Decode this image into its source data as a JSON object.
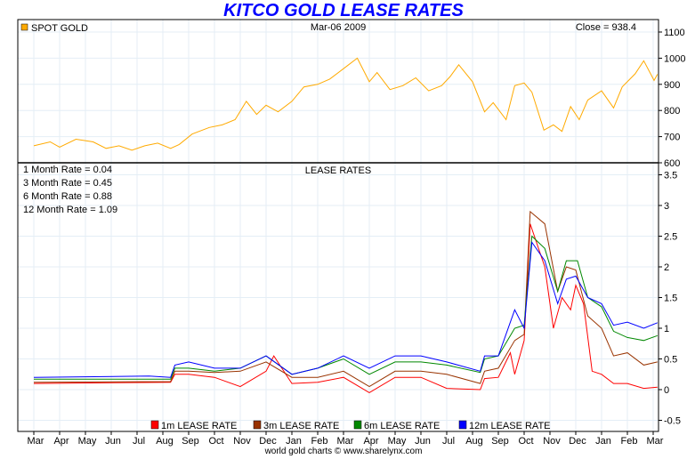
{
  "chart_data": [
    {
      "type": "line",
      "title": "KITCO GOLD LEASE RATES",
      "panel": "SPOT GOLD",
      "legend": [
        "SPOT GOLD"
      ],
      "date": "Mar-06  2009",
      "close_label": "Close = 938.4",
      "ylim": [
        600,
        1100
      ],
      "yticks": [
        600,
        700,
        800,
        900,
        1000,
        1100
      ],
      "color": "#ffaa00",
      "series": [
        {
          "name": "SPOT GOLD",
          "points": [
            [
              "2007-03-01",
              665
            ],
            [
              "2007-03-20",
              680
            ],
            [
              "2007-04-01",
              660
            ],
            [
              "2007-04-20",
              690
            ],
            [
              "2007-05-10",
              680
            ],
            [
              "2007-05-25",
              655
            ],
            [
              "2007-06-10",
              665
            ],
            [
              "2007-06-25",
              648
            ],
            [
              "2007-07-10",
              665
            ],
            [
              "2007-07-25",
              675
            ],
            [
              "2007-08-10",
              655
            ],
            [
              "2007-08-20",
              670
            ],
            [
              "2007-09-05",
              710
            ],
            [
              "2007-09-25",
              735
            ],
            [
              "2007-10-10",
              745
            ],
            [
              "2007-10-25",
              765
            ],
            [
              "2007-11-08",
              835
            ],
            [
              "2007-11-20",
              785
            ],
            [
              "2007-12-01",
              820
            ],
            [
              "2007-12-15",
              795
            ],
            [
              "2008-01-01",
              835
            ],
            [
              "2008-01-15",
              890
            ],
            [
              "2008-02-01",
              900
            ],
            [
              "2008-02-15",
              920
            ],
            [
              "2008-03-01",
              960
            ],
            [
              "2008-03-17",
              1000
            ],
            [
              "2008-04-01",
              910
            ],
            [
              "2008-04-10",
              945
            ],
            [
              "2008-04-25",
              880
            ],
            [
              "2008-05-10",
              895
            ],
            [
              "2008-05-25",
              925
            ],
            [
              "2008-06-10",
              875
            ],
            [
              "2008-06-25",
              895
            ],
            [
              "2008-07-05",
              930
            ],
            [
              "2008-07-15",
              975
            ],
            [
              "2008-08-01",
              910
            ],
            [
              "2008-08-15",
              795
            ],
            [
              "2008-08-25",
              830
            ],
            [
              "2008-09-10",
              765
            ],
            [
              "2008-09-20",
              895
            ],
            [
              "2008-10-01",
              905
            ],
            [
              "2008-10-10",
              870
            ],
            [
              "2008-10-24",
              725
            ],
            [
              "2008-11-05",
              745
            ],
            [
              "2008-11-15",
              720
            ],
            [
              "2008-11-25",
              815
            ],
            [
              "2008-12-05",
              765
            ],
            [
              "2008-12-15",
              840
            ],
            [
              "2009-01-01",
              875
            ],
            [
              "2009-01-15",
              810
            ],
            [
              "2009-01-25",
              890
            ],
            [
              "2009-02-10",
              940
            ],
            [
              "2009-02-20",
              990
            ],
            [
              "2009-03-02",
              915
            ],
            [
              "2009-03-06",
              938.4
            ]
          ]
        }
      ]
    },
    {
      "type": "line",
      "title": "LEASE RATES",
      "ylim": [
        -0.6,
        3.6
      ],
      "yticks": [
        -0.5,
        0,
        0.5,
        1,
        1.5,
        2,
        2.5,
        3,
        3.5
      ],
      "xticks": [
        "Mar",
        "Apr",
        "May",
        "Jun",
        "Jul",
        "Aug",
        "Sep",
        "Oct",
        "Nov",
        "Dec",
        "Jan",
        "Feb",
        "Mar",
        "Apr",
        "May",
        "Jun",
        "Jul",
        "Aug",
        "Sep",
        "Oct",
        "Nov",
        "Dec",
        "Jan",
        "Feb",
        "Mar"
      ],
      "readouts": [
        "1 Month Rate = 0.04",
        "3 Month Rate = 0.45",
        "6 Month Rate = 0.88",
        "12 Month Rate = 1.09"
      ],
      "series": [
        {
          "name": "1m LEASE RATE",
          "color": "#ff0000",
          "points": [
            [
              "2007-03-01",
              0.1
            ],
            [
              "2007-08-10",
              0.12
            ],
            [
              "2007-08-15",
              0.25
            ],
            [
              "2007-09-01",
              0.25
            ],
            [
              "2007-10-01",
              0.2
            ],
            [
              "2007-11-01",
              0.05
            ],
            [
              "2007-12-01",
              0.3
            ],
            [
              "2007-12-10",
              0.55
            ],
            [
              "2008-01-01",
              0.1
            ],
            [
              "2008-02-01",
              0.12
            ],
            [
              "2008-03-01",
              0.2
            ],
            [
              "2008-04-01",
              -0.05
            ],
            [
              "2008-05-01",
              0.2
            ],
            [
              "2008-06-01",
              0.2
            ],
            [
              "2008-07-01",
              0.02
            ],
            [
              "2008-08-10",
              0.0
            ],
            [
              "2008-08-15",
              0.18
            ],
            [
              "2008-09-01",
              0.2
            ],
            [
              "2008-09-15",
              0.6
            ],
            [
              "2008-09-20",
              0.25
            ],
            [
              "2008-10-01",
              0.8
            ],
            [
              "2008-10-08",
              2.7
            ],
            [
              "2008-10-25",
              2.0
            ],
            [
              "2008-11-05",
              1.0
            ],
            [
              "2008-11-15",
              1.5
            ],
            [
              "2008-11-25",
              1.3
            ],
            [
              "2008-12-01",
              1.7
            ],
            [
              "2008-12-10",
              1.4
            ],
            [
              "2008-12-20",
              0.3
            ],
            [
              "2009-01-01",
              0.25
            ],
            [
              "2009-01-15",
              0.1
            ],
            [
              "2009-02-01",
              0.1
            ],
            [
              "2009-02-20",
              0.02
            ],
            [
              "2009-03-06",
              0.04
            ]
          ]
        },
        {
          "name": "3m LEASE RATE",
          "color": "#993300",
          "points": [
            [
              "2007-03-01",
              0.12
            ],
            [
              "2007-08-10",
              0.13
            ],
            [
              "2007-08-15",
              0.3
            ],
            [
              "2007-09-01",
              0.3
            ],
            [
              "2007-10-01",
              0.28
            ],
            [
              "2007-11-01",
              0.3
            ],
            [
              "2007-12-01",
              0.45
            ],
            [
              "2008-01-01",
              0.2
            ],
            [
              "2008-02-01",
              0.2
            ],
            [
              "2008-03-01",
              0.3
            ],
            [
              "2008-04-01",
              0.05
            ],
            [
              "2008-05-01",
              0.3
            ],
            [
              "2008-06-01",
              0.3
            ],
            [
              "2008-07-01",
              0.25
            ],
            [
              "2008-08-10",
              0.1
            ],
            [
              "2008-08-15",
              0.3
            ],
            [
              "2008-09-01",
              0.35
            ],
            [
              "2008-09-20",
              0.8
            ],
            [
              "2008-10-01",
              0.9
            ],
            [
              "2008-10-08",
              2.9
            ],
            [
              "2008-10-25",
              2.7
            ],
            [
              "2008-11-10",
              1.6
            ],
            [
              "2008-11-20",
              2.0
            ],
            [
              "2008-12-01",
              1.95
            ],
            [
              "2008-12-15",
              1.2
            ],
            [
              "2009-01-01",
              1.0
            ],
            [
              "2009-01-15",
              0.55
            ],
            [
              "2009-02-01",
              0.6
            ],
            [
              "2009-02-20",
              0.4
            ],
            [
              "2009-03-06",
              0.45
            ]
          ]
        },
        {
          "name": "6m LEASE RATE",
          "color": "#008800",
          "points": [
            [
              "2007-03-01",
              0.17
            ],
            [
              "2007-08-10",
              0.17
            ],
            [
              "2007-08-15",
              0.35
            ],
            [
              "2007-09-01",
              0.35
            ],
            [
              "2007-10-01",
              0.3
            ],
            [
              "2007-11-01",
              0.35
            ],
            [
              "2007-12-01",
              0.55
            ],
            [
              "2008-01-01",
              0.25
            ],
            [
              "2008-02-01",
              0.35
            ],
            [
              "2008-03-01",
              0.5
            ],
            [
              "2008-04-01",
              0.25
            ],
            [
              "2008-05-01",
              0.45
            ],
            [
              "2008-06-01",
              0.45
            ],
            [
              "2008-07-01",
              0.4
            ],
            [
              "2008-08-10",
              0.28
            ],
            [
              "2008-08-15",
              0.5
            ],
            [
              "2008-09-01",
              0.55
            ],
            [
              "2008-09-20",
              1.0
            ],
            [
              "2008-10-01",
              1.05
            ],
            [
              "2008-10-10",
              2.5
            ],
            [
              "2008-10-25",
              2.3
            ],
            [
              "2008-11-10",
              1.6
            ],
            [
              "2008-11-20",
              2.1
            ],
            [
              "2008-12-03",
              2.1
            ],
            [
              "2008-12-15",
              1.5
            ],
            [
              "2009-01-01",
              1.35
            ],
            [
              "2009-01-15",
              0.95
            ],
            [
              "2009-02-01",
              0.85
            ],
            [
              "2009-02-20",
              0.8
            ],
            [
              "2009-03-06",
              0.88
            ]
          ]
        },
        {
          "name": "12m LEASE RATE",
          "color": "#0000ff",
          "points": [
            [
              "2007-03-01",
              0.2
            ],
            [
              "2007-07-15",
              0.22
            ],
            [
              "2007-08-10",
              0.2
            ],
            [
              "2007-08-15",
              0.4
            ],
            [
              "2007-09-01",
              0.45
            ],
            [
              "2007-10-01",
              0.35
            ],
            [
              "2007-11-01",
              0.35
            ],
            [
              "2007-12-01",
              0.55
            ],
            [
              "2008-01-01",
              0.25
            ],
            [
              "2008-02-01",
              0.35
            ],
            [
              "2008-03-01",
              0.55
            ],
            [
              "2008-04-01",
              0.35
            ],
            [
              "2008-05-01",
              0.55
            ],
            [
              "2008-06-01",
              0.55
            ],
            [
              "2008-07-01",
              0.45
            ],
            [
              "2008-08-10",
              0.3
            ],
            [
              "2008-08-15",
              0.55
            ],
            [
              "2008-09-01",
              0.55
            ],
            [
              "2008-09-20",
              1.3
            ],
            [
              "2008-10-01",
              1.0
            ],
            [
              "2008-10-10",
              2.4
            ],
            [
              "2008-10-25",
              2.1
            ],
            [
              "2008-11-10",
              1.4
            ],
            [
              "2008-11-20",
              1.8
            ],
            [
              "2008-12-01",
              1.85
            ],
            [
              "2008-12-15",
              1.5
            ],
            [
              "2009-01-01",
              1.4
            ],
            [
              "2009-01-15",
              1.05
            ],
            [
              "2009-02-01",
              1.1
            ],
            [
              "2009-02-20",
              1.0
            ],
            [
              "2009-03-06",
              1.09
            ]
          ]
        }
      ]
    }
  ],
  "footer": "world gold charts © www.sharelynx.com"
}
